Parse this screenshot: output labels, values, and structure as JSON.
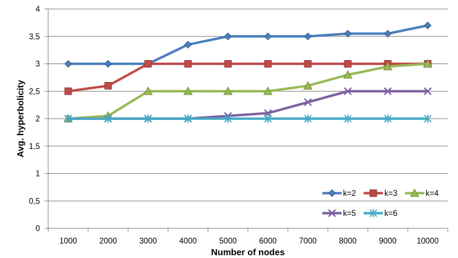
{
  "chart_data": {
    "type": "line",
    "xlabel": "Number of nodes",
    "ylabel": "Avg. hyperbolicity",
    "categories": [
      "1000",
      "2000",
      "3000",
      "4000",
      "5000",
      "6000",
      "7000",
      "8000",
      "9000",
      "10000"
    ],
    "ylim": [
      0,
      4
    ],
    "yticks": [
      "0",
      "0,5",
      "1",
      "1,5",
      "2",
      "2,5",
      "3",
      "3,5",
      "4"
    ],
    "grid": "horizontal",
    "legend_position": "bottom-right",
    "series": [
      {
        "name": "k=2",
        "color": "#4a7ebb",
        "marker": "diamond",
        "values": [
          3,
          3,
          3,
          3.35,
          3.5,
          3.5,
          3.5,
          3.55,
          3.55,
          3.7
        ]
      },
      {
        "name": "k=3",
        "color": "#be4b48",
        "marker": "square",
        "values": [
          2.5,
          2.6,
          3,
          3,
          3,
          3,
          3,
          3,
          3,
          3
        ]
      },
      {
        "name": "k=4",
        "color": "#98b954",
        "marker": "triangle",
        "values": [
          2,
          2.05,
          2.5,
          2.5,
          2.5,
          2.5,
          2.6,
          2.8,
          2.95,
          3
        ]
      },
      {
        "name": "k=5",
        "color": "#7d60a0",
        "marker": "x",
        "values": [
          2,
          2,
          2,
          2,
          2.05,
          2.1,
          2.3,
          2.5,
          2.5,
          2.5
        ]
      },
      {
        "name": "k=6",
        "color": "#46aac5",
        "marker": "star",
        "values": [
          2,
          2,
          2,
          2,
          2,
          2,
          2,
          2,
          2,
          2
        ]
      }
    ]
  }
}
